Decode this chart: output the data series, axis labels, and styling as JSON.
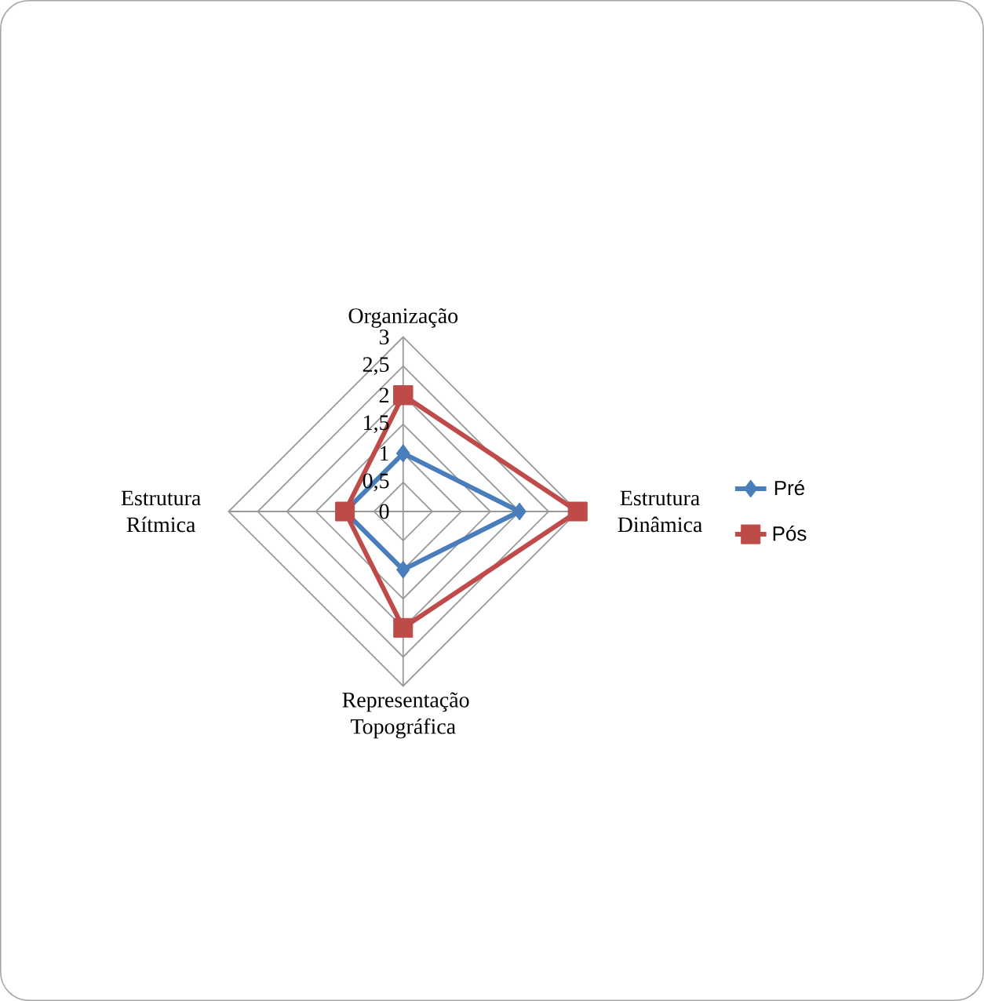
{
  "chart_data": {
    "type": "radar",
    "categories": [
      "Organização",
      "Estrutura Dinâmica",
      "Representação Topográfica",
      "Estrutura Rítmica"
    ],
    "ylim": [
      0,
      3
    ],
    "yticks": [
      0,
      {
        "value": 0.5,
        "label": "0,5"
      },
      1,
      {
        "value": 1.5,
        "label": "1,5"
      },
      2,
      {
        "value": 2.5,
        "label": "2,5"
      },
      3
    ],
    "grid": true,
    "legend": "right",
    "series": [
      {
        "name": "Pré",
        "color": "#4a7ebb",
        "marker": "diamond",
        "values": [
          1,
          2,
          1,
          1
        ]
      },
      {
        "name": "Pós",
        "color": "#be4b48",
        "marker": "square",
        "values": [
          2,
          3,
          2,
          1
        ]
      }
    ]
  }
}
